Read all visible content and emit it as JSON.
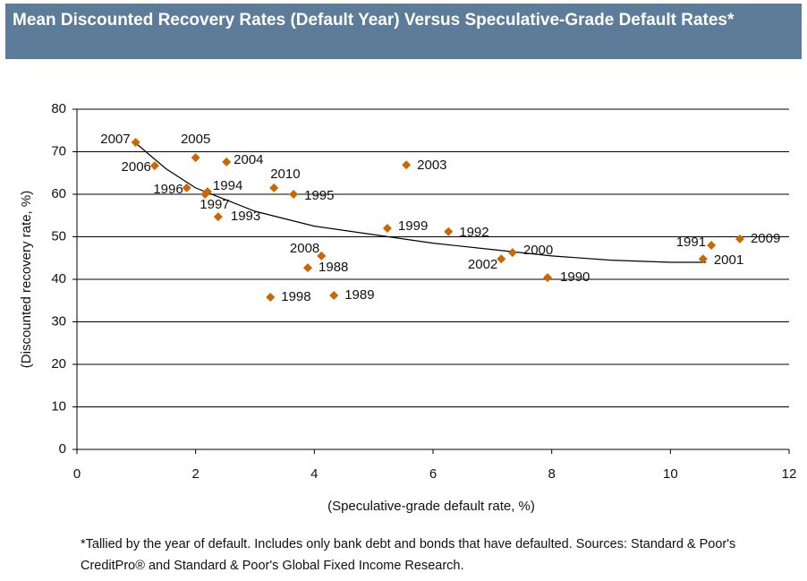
{
  "chart_data": {
    "type": "scatter",
    "title": "Mean Discounted Recovery Rates (Default Year) Versus Speculative-Grade Default Rates*",
    "xlabel": "(Speculative-grade default rate, %)",
    "ylabel": "(Discounted recovery rate, %)",
    "footnote": "*Tallied by the year of default. Includes only bank debt and bonds that have defaulted. Sources: Standard & Poor's CreditPro® and Standard & Poor's Global Fixed Income Research.",
    "point_labels": [
      "2007",
      "2006",
      "2005",
      "2004",
      "1996",
      "1994",
      "1997",
      "1993",
      "2010",
      "1995",
      "2003",
      "1999",
      "1992",
      "2008",
      "1988",
      "1998",
      "1989",
      "2000",
      "2002",
      "1990",
      "1991",
      "2001",
      "2009"
    ],
    "x": [
      0.99,
      1.31,
      2.0,
      2.52,
      1.85,
      2.2,
      2.16,
      2.38,
      3.32,
      3.65,
      5.55,
      5.23,
      6.26,
      4.12,
      3.89,
      3.26,
      4.33,
      7.34,
      7.15,
      7.93,
      10.69,
      10.55,
      11.17
    ],
    "values": [
      72.2,
      66.7,
      68.6,
      67.6,
      61.5,
      60.6,
      60.0,
      54.7,
      61.5,
      60.0,
      66.9,
      52.0,
      51.2,
      45.5,
      42.7,
      35.8,
      36.2,
      46.3,
      44.8,
      40.4,
      48.0,
      44.8,
      49.5
    ],
    "color": "#cc6600",
    "trendline": {
      "x": [
        0.95,
        1.5,
        2,
        3,
        4,
        5,
        6,
        7,
        8,
        9,
        10,
        10.6
      ],
      "values": [
        72.5,
        66,
        61.5,
        56,
        52.5,
        50.5,
        48.5,
        47,
        45.5,
        44.5,
        44,
        44
      ]
    },
    "xlim": [
      0,
      12
    ],
    "xticks": [
      0,
      2,
      4,
      6,
      8,
      10,
      12
    ],
    "ylim": [
      0,
      80
    ],
    "yticks": [
      0,
      10,
      20,
      30,
      40,
      50,
      60,
      70,
      80
    ],
    "grid": true
  }
}
